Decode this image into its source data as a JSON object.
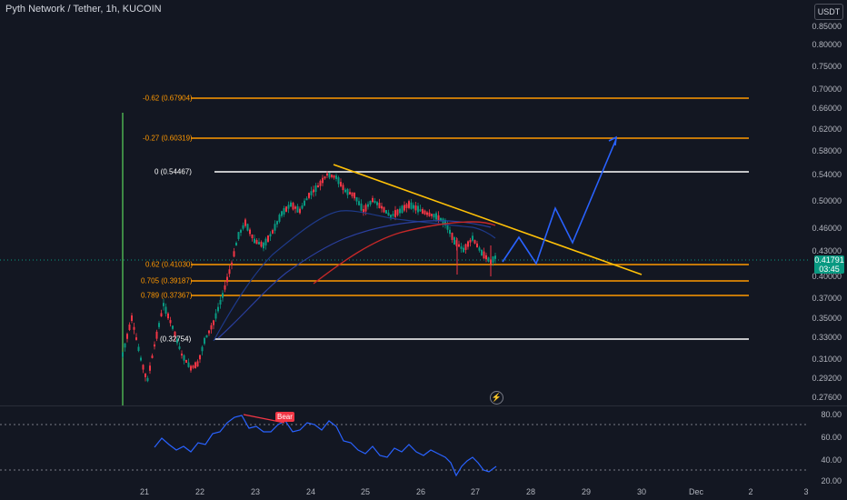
{
  "header": {
    "title": "Pyth Network / Tether, 1h, KUCOIN"
  },
  "price_axis": {
    "currency": "USDT",
    "labels": [
      "0.85000",
      "0.80000",
      "0.75000",
      "0.70000",
      "0.66000",
      "0.62000",
      "0.58000",
      "0.54000",
      "0.50000",
      "0.46000",
      "0.43000",
      "0.40000",
      "0.37000",
      "0.35000",
      "0.33000",
      "0.31000",
      "0.29200",
      "0.27600"
    ]
  },
  "last_price": {
    "value": "0.41791",
    "countdown": "03:45"
  },
  "rsi_axis": {
    "labels": [
      "80.00",
      "60.00",
      "40.00",
      "20.00"
    ]
  },
  "time_axis": {
    "labels": [
      "21",
      "22",
      "23",
      "24",
      "25",
      "26",
      "27",
      "28",
      "29",
      "30",
      "Dec",
      "2",
      "3"
    ]
  },
  "fib_levels": [
    {
      "label": "-0.62 (0.67904)",
      "price": 0.67904,
      "color": "#ff9800"
    },
    {
      "label": "-0.27 (0.60319)",
      "price": 0.60319,
      "color": "#ff9800"
    },
    {
      "label": "0 (0.54467)",
      "price": 0.54467,
      "color": "#ffffff"
    },
    {
      "label": "0.62 (0.41030)",
      "price": 0.4103,
      "color": "#ff9800"
    },
    {
      "label": "0.705 (0.39187)",
      "price": 0.39187,
      "color": "#ff9800"
    },
    {
      "label": "0.789 (0.37367)",
      "price": 0.37367,
      "color": "#ff9800"
    },
    {
      "label": "(0.32754)",
      "price": 0.32754,
      "color": "#ffffff"
    }
  ],
  "rsi_signal": {
    "label": "Bear"
  },
  "colors": {
    "up": "#089981",
    "down": "#f23645",
    "rsi": "#2962ff",
    "trendline": "#ffc107",
    "projection": "#2962ff"
  }
}
